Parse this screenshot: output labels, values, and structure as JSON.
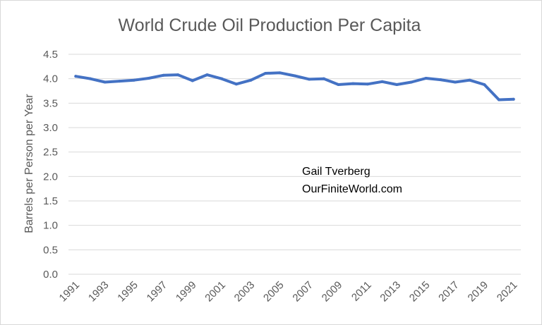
{
  "chart_data": {
    "type": "line",
    "title": "World Crude Oil Production Per Capita",
    "xlabel": "",
    "ylabel": "Barrels per Person per Year",
    "ylim": [
      0,
      4.5
    ],
    "y_ticks": [
      "0.0",
      "0.5",
      "1.0",
      "1.5",
      "2.0",
      "2.5",
      "3.0",
      "3.5",
      "4.0",
      "4.5"
    ],
    "x_tick_labels": [
      "1991",
      "1993",
      "1995",
      "1997",
      "1999",
      "2001",
      "2003",
      "2005",
      "2007",
      "2009",
      "2011",
      "2013",
      "2015",
      "2017",
      "2019",
      "2021"
    ],
    "grid": true,
    "series": [
      {
        "name": "World Crude Oil Production Per Capita",
        "color": "#4472C4",
        "x": [
          1991,
          1992,
          1993,
          1994,
          1995,
          1996,
          1997,
          1998,
          1999,
          2000,
          2001,
          2002,
          2003,
          2004,
          2005,
          2006,
          2007,
          2008,
          2009,
          2010,
          2011,
          2012,
          2013,
          2014,
          2015,
          2016,
          2017,
          2018,
          2019,
          2020,
          2021
        ],
        "values": [
          4.05,
          4.0,
          3.93,
          3.95,
          3.97,
          4.01,
          4.07,
          4.08,
          3.96,
          4.08,
          4.0,
          3.89,
          3.97,
          4.11,
          4.12,
          4.06,
          3.99,
          4.0,
          3.88,
          3.9,
          3.89,
          3.94,
          3.88,
          3.93,
          4.01,
          3.98,
          3.93,
          3.97,
          3.88,
          3.57,
          3.58
        ]
      }
    ],
    "annotations": [
      "Gail Tverberg",
      "OurFiniteWorld.com"
    ]
  },
  "colors": {
    "line": "#4472C4",
    "grid": "#d9d9d9",
    "text": "#595959"
  }
}
